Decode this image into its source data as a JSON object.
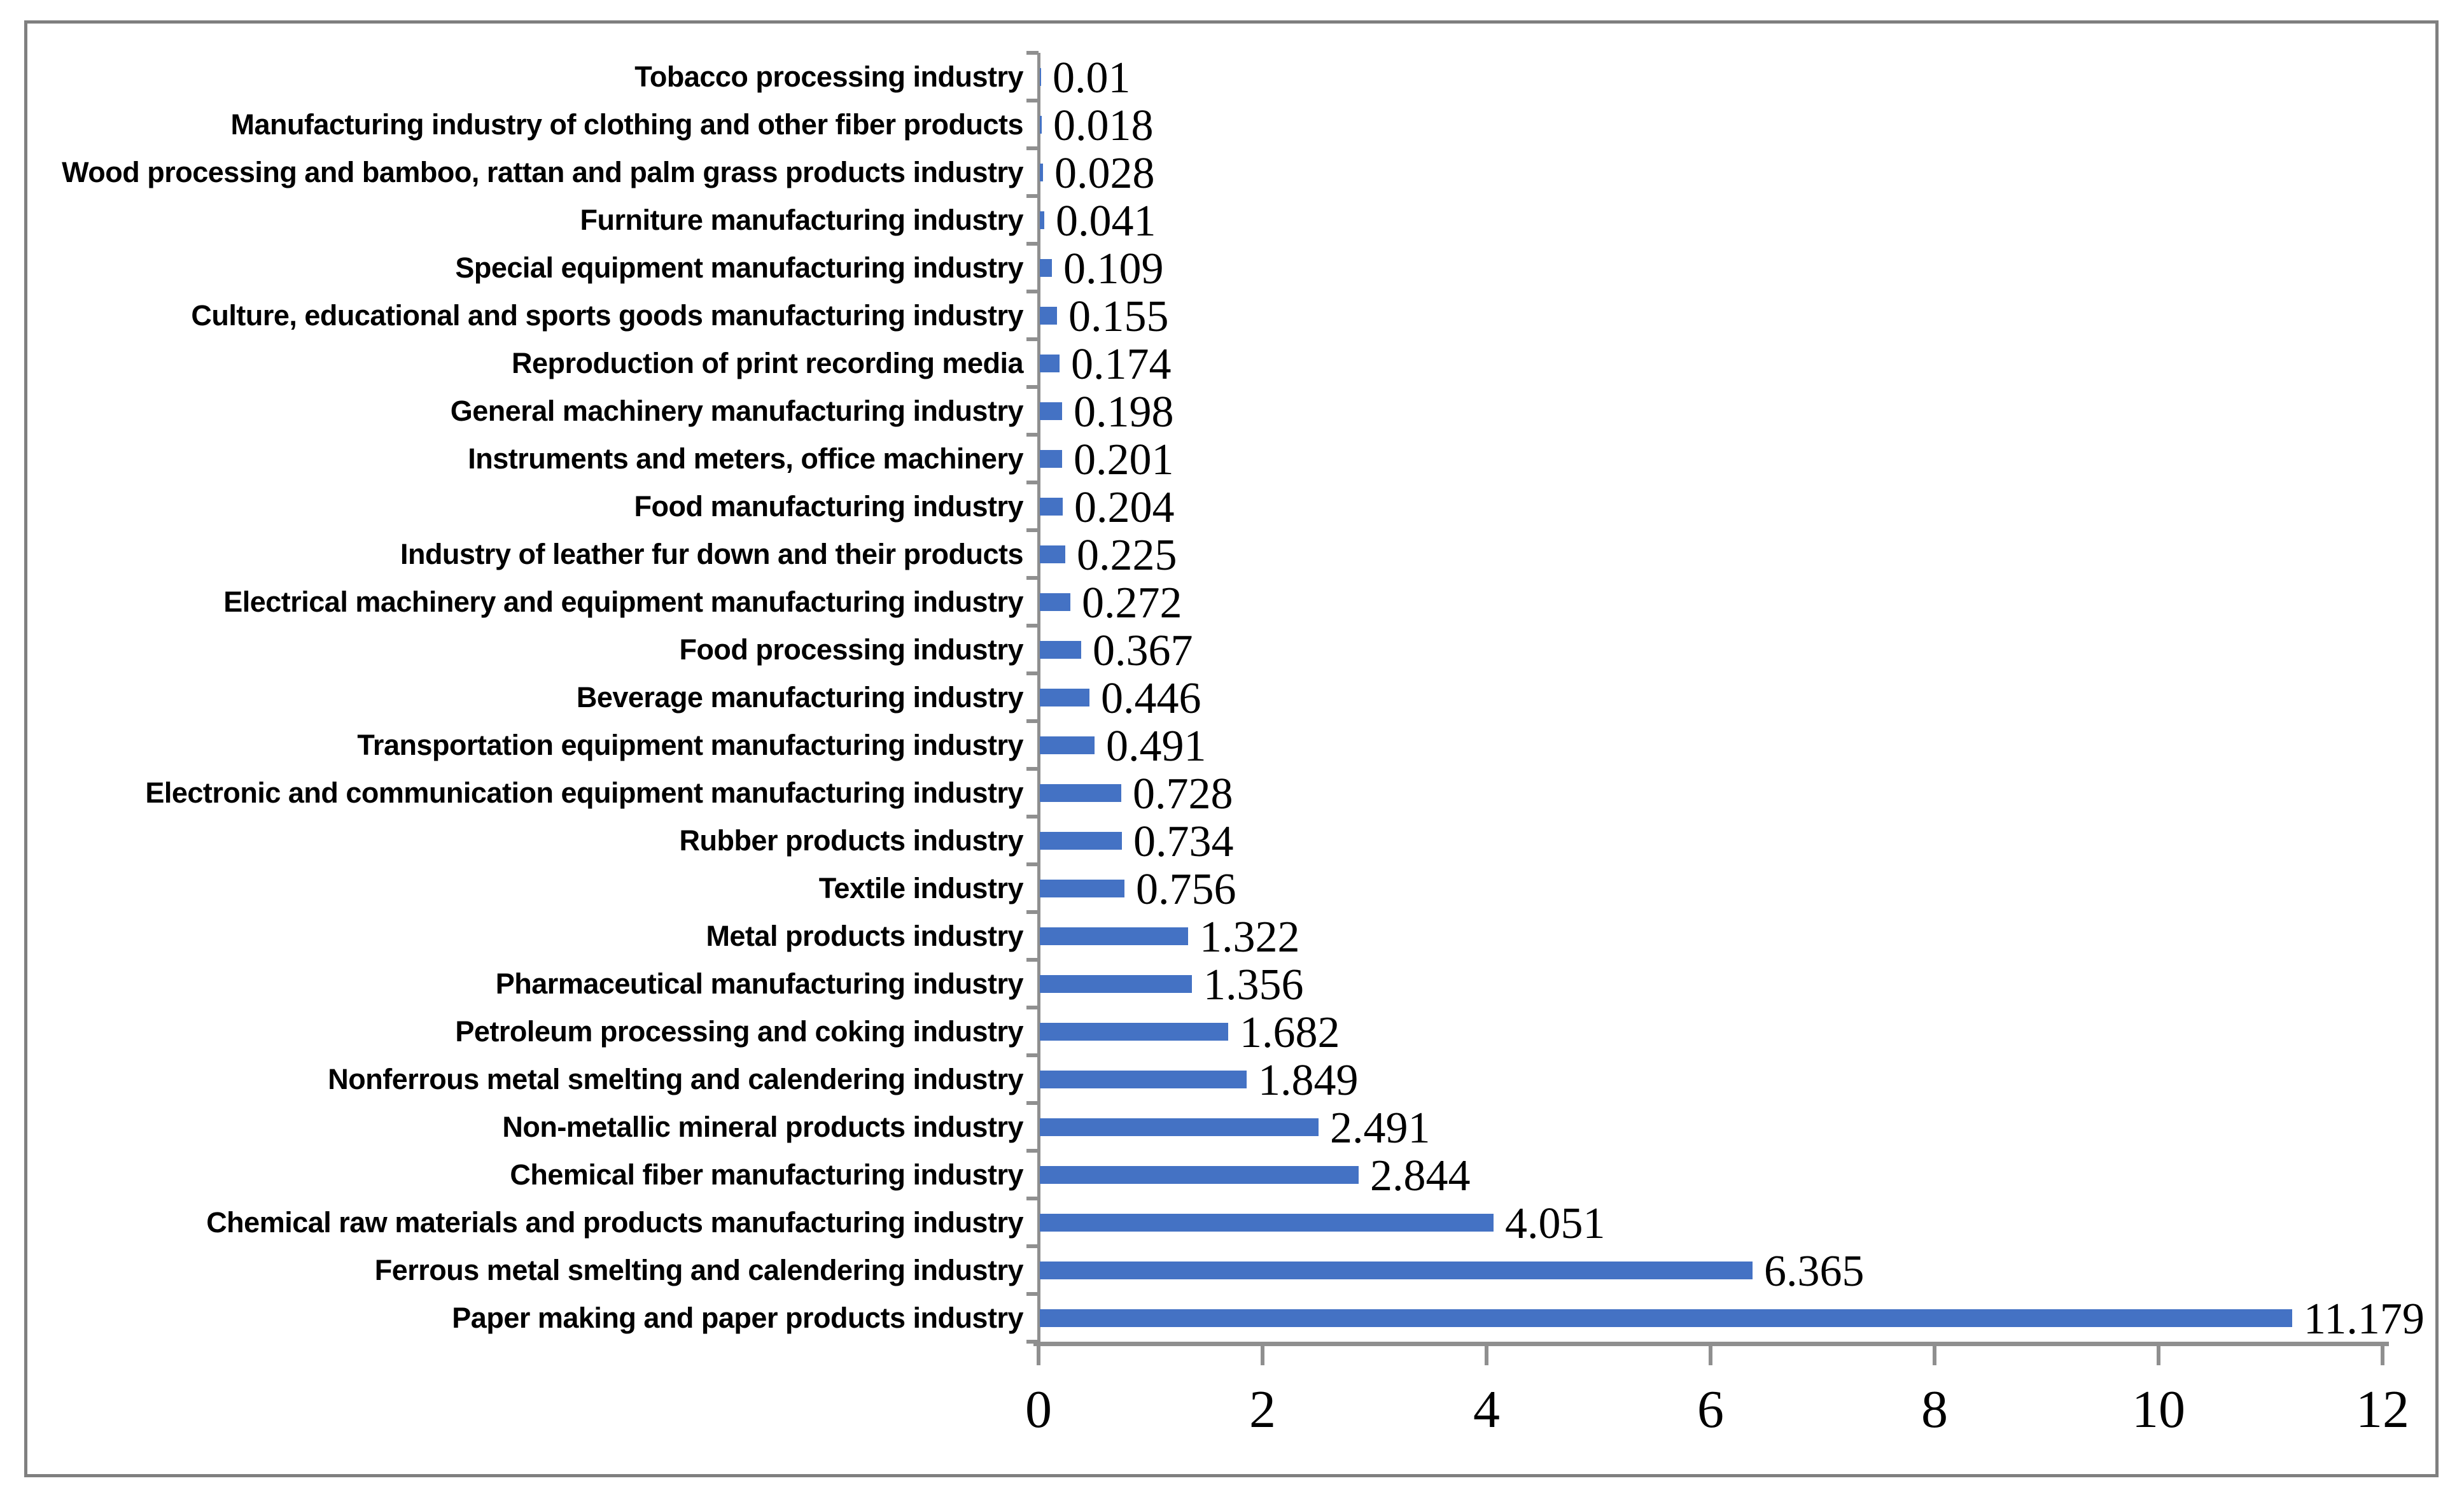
{
  "chart_data": {
    "type": "bar",
    "orientation": "horizontal",
    "title": "",
    "xlabel": "",
    "ylabel": "",
    "xlim": [
      0,
      12
    ],
    "x_ticks": [
      0,
      2,
      4,
      6,
      8,
      10,
      12
    ],
    "grid": false,
    "legend": false,
    "bar_color": "#4472C4",
    "axis_color": "#8F8F8F",
    "border_color": "#7F7F7F",
    "value_label_position": "outside-end",
    "categories": [
      "Tobacco processing industry",
      "Manufacturing industry of clothing and other fiber products",
      "Wood processing and bamboo, rattan and palm grass products industry",
      "Furniture manufacturing industry",
      "Special equipment manufacturing industry",
      "Culture, educational and sports goods manufacturing industry",
      "Reproduction of print recording media",
      "General machinery manufacturing industry",
      "Instruments and meters, office machinery",
      "Food manufacturing industry",
      "Industry of leather fur down and their products",
      "Electrical machinery and equipment manufacturing industry",
      "Food processing industry",
      "Beverage manufacturing industry",
      "Transportation equipment manufacturing industry",
      "Electronic and communication equipment manufacturing industry",
      "Rubber products industry",
      "Textile industry",
      "Metal products industry",
      "Pharmaceutical manufacturing industry",
      "Petroleum processing and coking industry",
      "Nonferrous metal smelting and calendering industry",
      "Non-metallic mineral products industry",
      "Chemical fiber manufacturing industry",
      "Chemical raw materials and products manufacturing industry",
      "Ferrous metal smelting and calendering industry",
      "Paper making and paper products industry"
    ],
    "values": [
      0.01,
      0.018,
      0.028,
      0.041,
      0.109,
      0.155,
      0.174,
      0.198,
      0.201,
      0.204,
      0.225,
      0.272,
      0.367,
      0.446,
      0.491,
      0.728,
      0.734,
      0.756,
      1.322,
      1.356,
      1.682,
      1.849,
      2.491,
      2.844,
      4.051,
      6.365,
      11.179
    ],
    "value_labels": [
      "0.01",
      "0.018",
      "0.028",
      "0.041",
      "0.109",
      "0.155",
      "0.174",
      "0.198",
      "0.201",
      "0.204",
      "0.225",
      "0.272",
      "0.367",
      "0.446",
      "0.491",
      "0.728",
      "0.734",
      "0.756",
      "1.322",
      "1.356",
      "1.682",
      "1.849",
      "2.491",
      "2.844",
      "4.051",
      "6.365",
      "11.179"
    ]
  }
}
